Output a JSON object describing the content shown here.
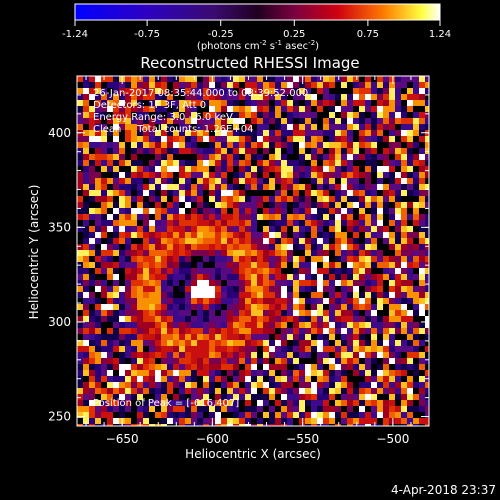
{
  "chart_data": {
    "type": "heatmap",
    "title": "Reconstructed RHESSI Image",
    "xlabel": "Heliocentric X (arcsec)",
    "ylabel": "Heliocentric Y (arcsec)",
    "xlim": [
      -675,
      -480
    ],
    "ylim": [
      245,
      430
    ],
    "x_ticks": [
      -650,
      -600,
      -550,
      -500
    ],
    "y_ticks": [
      250,
      300,
      350,
      400
    ],
    "colorbar": {
      "min": -1.24,
      "max": 1.24,
      "ticks": [
        "-1.24",
        "-0.75",
        "-0.25",
        "0.25",
        "0.75",
        "1.24"
      ],
      "units_prefix": "(photons cm",
      "units_exp1": "-2",
      "units_mid": " s",
      "units_exp2": "-1",
      "units_mid2": " asec",
      "units_exp3": "-2",
      "units_suffix": ")"
    },
    "annotations": [
      "26-Jan-2017 08:35:44.000 to 08:39:52.000",
      "Detectors: 1F 3F, Att 0",
      "Energy Range: 3.0 - 6.0 keV",
      "Clean     Total counts: 1.26E+04"
    ],
    "peak_label": "Position of Peak = [-616,407]",
    "peak_position": [
      -616,
      407
    ],
    "grid": false,
    "colormap": [
      "#000000",
      "#0a0a5a",
      "#3c1a8c",
      "#7a1f9a",
      "#b5206e",
      "#e0301c",
      "#f57a10",
      "#fbc12a",
      "#ffffff"
    ]
  },
  "footer": {
    "date": "4-Apr-2018 23:37"
  }
}
